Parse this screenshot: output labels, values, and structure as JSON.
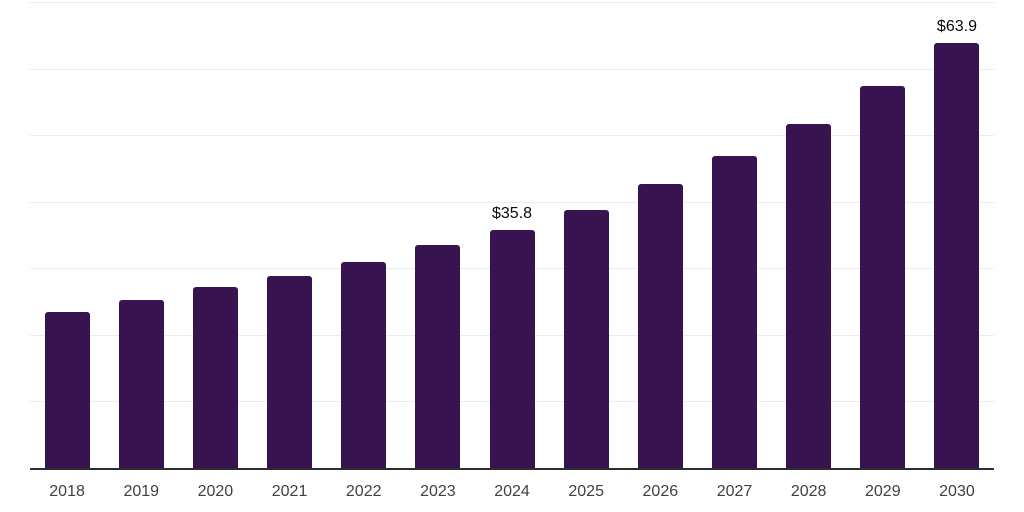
{
  "chart_data": {
    "type": "bar",
    "categories": [
      "2018",
      "2019",
      "2020",
      "2021",
      "2022",
      "2023",
      "2024",
      "2025",
      "2026",
      "2027",
      "2028",
      "2029",
      "2030"
    ],
    "values": [
      23.4,
      25.2,
      27.2,
      28.9,
      31.0,
      33.5,
      35.8,
      38.8,
      42.7,
      46.9,
      51.7,
      57.4,
      63.9
    ],
    "data_labels": [
      "",
      "",
      "",
      "",
      "",
      "",
      "$35.8",
      "",
      "",
      "",
      "",
      "",
      "$63.9"
    ],
    "xlabel": "",
    "ylabel": "",
    "ylim": [
      0,
      70
    ],
    "gridline_step": 10,
    "grid": "horizontal-only",
    "legend": "none",
    "colors": {
      "bar": "#371350",
      "gridline": "#ececef",
      "axis_line": "#2d2d2d",
      "tick_label": "#404040",
      "data_label": "#0a0a0a",
      "background": "#ffffff"
    }
  }
}
